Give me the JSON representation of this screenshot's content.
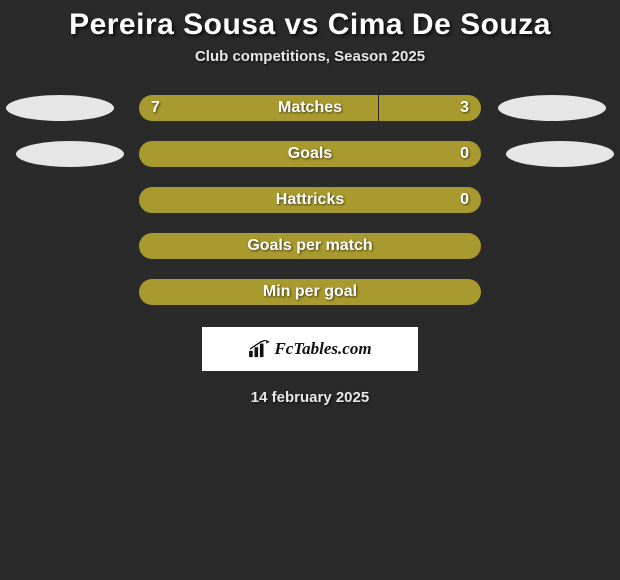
{
  "title": "Pereira Sousa vs Cima De Souza",
  "subtitle": "Club competitions, Season 2025",
  "date": "14 february 2025",
  "logo_text": "FcTables.com",
  "colors": {
    "bar_fill": "#a89a2e",
    "background": "#2a2a2a",
    "text": "#ffffff",
    "avatar": "#e6e6e6",
    "logo_bg": "#ffffff"
  },
  "rows": [
    {
      "label": "Matches",
      "left": "7",
      "right": "3",
      "left_pct": 70,
      "right_pct": 30,
      "show_values": true,
      "has_avatars": true,
      "avatar_row": 1
    },
    {
      "label": "Goals",
      "left": "",
      "right": "0",
      "left_pct": 100,
      "right_pct": 0,
      "show_values": true,
      "has_avatars": true,
      "avatar_row": 2
    },
    {
      "label": "Hattricks",
      "left": "",
      "right": "0",
      "left_pct": 100,
      "right_pct": 0,
      "show_values": true,
      "has_avatars": false
    },
    {
      "label": "Goals per match",
      "left": "",
      "right": "",
      "left_pct": 100,
      "right_pct": 0,
      "show_values": false,
      "has_avatars": false
    },
    {
      "label": "Min per goal",
      "left": "",
      "right": "",
      "left_pct": 100,
      "right_pct": 0,
      "show_values": false,
      "has_avatars": false
    }
  ]
}
